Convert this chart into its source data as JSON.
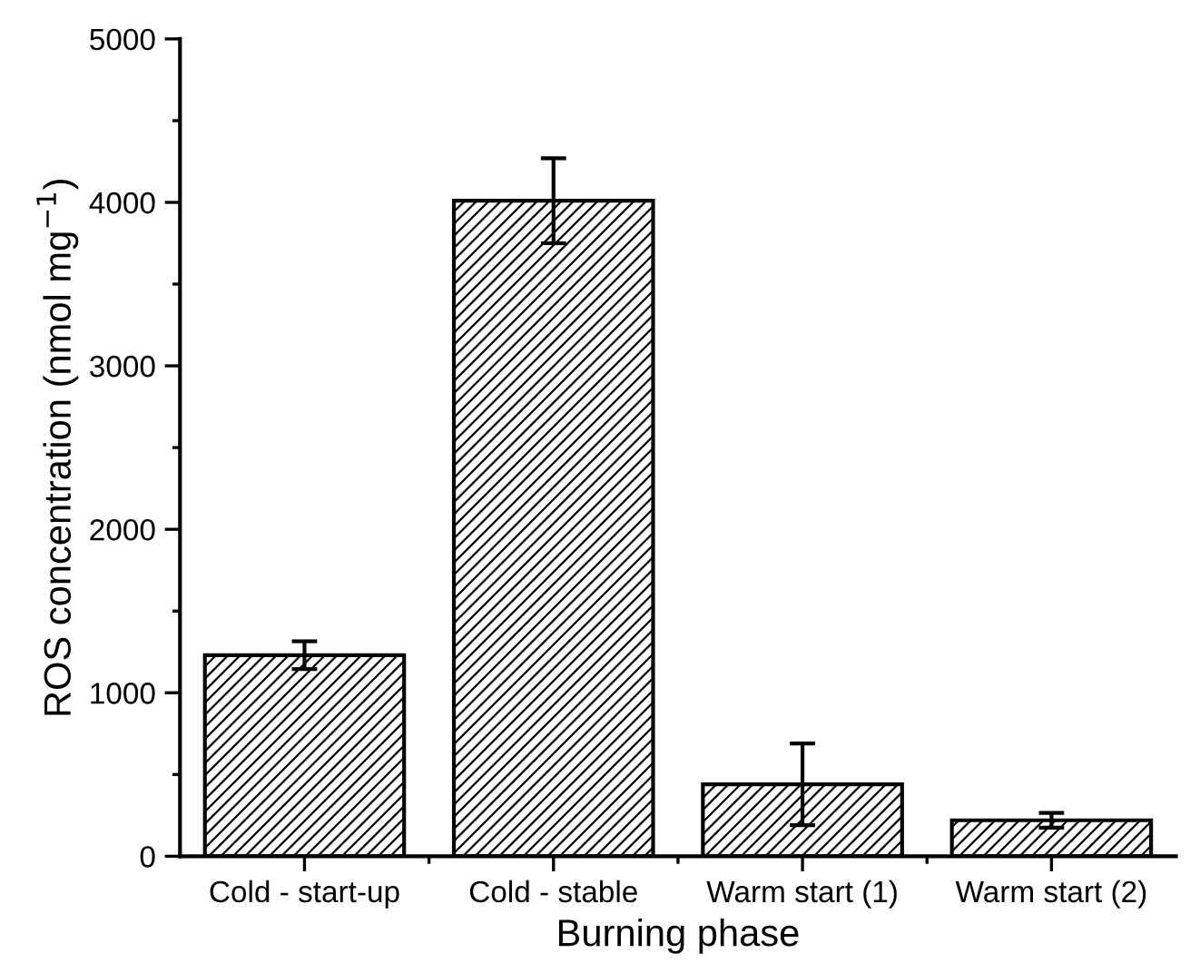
{
  "chart_data": {
    "type": "bar",
    "xlabel": "Burning phase",
    "ylabel": "ROS concentration (nmol mg$^{−1}$)",
    "categories": [
      "Cold - start-up",
      "Cold - stable",
      "Warm start (1)",
      "Warm start (2)"
    ],
    "values": [
      1230,
      4010,
      440,
      220
    ],
    "errors": [
      85,
      260,
      250,
      45
    ],
    "color": "#000000",
    "ylim": [
      0,
      5000
    ],
    "yticks": [
      0,
      1000,
      2000,
      3000,
      4000,
      5000
    ],
    "grid": false
  }
}
